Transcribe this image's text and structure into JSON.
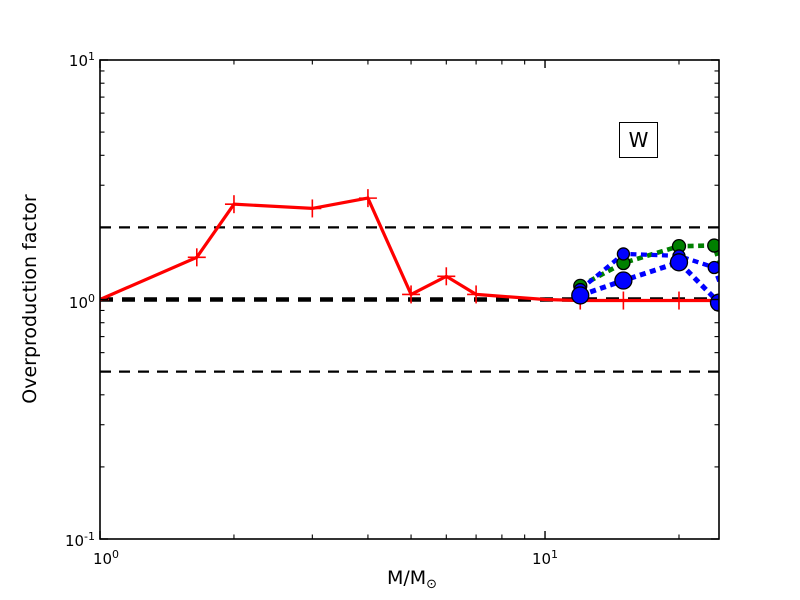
{
  "figure": {
    "background": "#ffffff"
  },
  "legend": {
    "label": "W",
    "position": "upper right"
  },
  "axes": {
    "x": {
      "title_base": "M/M",
      "title_sub": "⊙",
      "scale": "log",
      "major_ticks": [
        {
          "value": 1,
          "base": "10",
          "exp": "0"
        },
        {
          "value": 10,
          "base": "10",
          "exp": "1"
        }
      ],
      "minor_ticks": [
        2,
        3,
        4,
        5,
        6,
        7,
        8,
        9,
        20
      ]
    },
    "y": {
      "title": "Overproduction factor",
      "scale": "log",
      "major_ticks": [
        {
          "value": 10,
          "base": "10",
          "exp": "1"
        },
        {
          "value": 1,
          "base": "10",
          "exp": "0"
        },
        {
          "value": 0.1,
          "base": "10",
          "exp": "-1"
        }
      ],
      "minor_ticks": [
        0.2,
        0.3,
        0.4,
        0.5,
        0.6,
        0.7,
        0.8,
        0.9,
        2,
        3,
        4,
        5,
        6,
        7,
        8,
        9
      ]
    }
  },
  "chart_data": {
    "type": "line",
    "title": "",
    "xlabel": "M/M☉",
    "ylabel": "Overproduction factor",
    "xscale": "log",
    "yscale": "log",
    "xlim": [
      1,
      24.6
    ],
    "ylim": [
      0.1,
      10
    ],
    "grid": false,
    "legend_label": "W",
    "legend_position": "upper right",
    "reference_lines": [
      {
        "y": 1.0,
        "color": "#000000",
        "width": 4.6,
        "dash": "13 9",
        "note": "thick dashed line at overproduction factor = 1"
      },
      {
        "y": 2.0,
        "color": "#000000",
        "width": 2.3,
        "dash": "11 8",
        "note": "thin dashed line at factor 2"
      },
      {
        "y": 0.5,
        "color": "#000000",
        "width": 2.3,
        "dash": "11 8",
        "note": "thin dashed line at factor 0.5"
      }
    ],
    "series": [
      {
        "name": "red-solid-plus",
        "color": "#ff0000",
        "line_style": "solid",
        "line_width": 3.2,
        "dash": "",
        "marker": "plus",
        "marker_size": 9,
        "points": [
          [
            1,
            1.0
          ],
          [
            1.65,
            1.5
          ],
          [
            2,
            2.5
          ],
          [
            3,
            2.4
          ],
          [
            4,
            2.65
          ],
          [
            5,
            1.05
          ],
          [
            6,
            1.25
          ],
          [
            7,
            1.05
          ],
          [
            10,
            1.0
          ],
          [
            12,
            0.99
          ],
          [
            15,
            0.99
          ],
          [
            20,
            0.99
          ],
          [
            24.6,
            0.99
          ]
        ],
        "marker_points": [
          [
            1,
            1.0
          ],
          [
            1.65,
            1.5
          ],
          [
            2,
            2.5
          ],
          [
            3,
            2.4
          ],
          [
            4,
            2.65
          ],
          [
            5,
            1.05
          ],
          [
            6,
            1.25
          ],
          [
            7,
            1.05
          ],
          [
            12,
            0.99
          ],
          [
            15,
            0.99
          ],
          [
            20,
            0.99
          ]
        ]
      },
      {
        "name": "green-dashed-circles",
        "color": "#008000",
        "line_style": "dashed",
        "line_width": 4.6,
        "dash": "6 4.5",
        "marker": "circle",
        "marker_size": 6.5,
        "points": [
          [
            12,
            1.14
          ],
          [
            15,
            1.42
          ],
          [
            20,
            1.67
          ],
          [
            24,
            1.68
          ],
          [
            25.5,
            1.18
          ]
        ],
        "marker_points": [
          [
            12,
            1.14
          ],
          [
            15,
            1.42
          ],
          [
            20,
            1.67
          ],
          [
            24,
            1.68
          ]
        ]
      },
      {
        "name": "blue-dashed-small-circles",
        "color": "#0000ff",
        "line_style": "dashed",
        "line_width": 4.3,
        "dash": "6 4.5",
        "marker": "circle",
        "marker_size": 6,
        "points": [
          [
            12,
            1.1
          ],
          [
            15,
            1.55
          ],
          [
            20,
            1.52
          ],
          [
            24,
            1.36
          ],
          [
            25.5,
            1.0
          ]
        ],
        "marker_points": [
          [
            12,
            1.1
          ],
          [
            15,
            1.55
          ],
          [
            20,
            1.52
          ],
          [
            24,
            1.36
          ]
        ]
      },
      {
        "name": "blue-dashed-large-circles",
        "color": "#0000ff",
        "line_style": "dashed",
        "line_width": 5.0,
        "dash": "6 4.5",
        "marker": "circle",
        "marker_size": 8.5,
        "points": [
          [
            12,
            1.04
          ],
          [
            15,
            1.2
          ],
          [
            20,
            1.43
          ],
          [
            24.6,
            0.97
          ]
        ],
        "marker_points": [
          [
            12,
            1.04
          ],
          [
            15,
            1.2
          ],
          [
            20,
            1.43
          ],
          [
            24.6,
            0.97
          ]
        ]
      }
    ]
  }
}
